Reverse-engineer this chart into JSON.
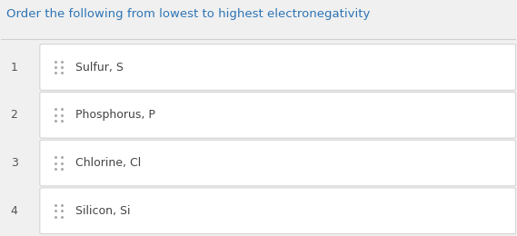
{
  "title": "Order the following from lowest to highest electronegativity",
  "title_color": "#2e75b6",
  "title_fontsize": 9.5,
  "items": [
    {
      "number": "1",
      "label": "Sulfur, S"
    },
    {
      "number": "2",
      "label": "Phosphorus, P"
    },
    {
      "number": "3",
      "label": "Chlorine, Cl"
    },
    {
      "number": "4",
      "label": "Silicon, Si"
    }
  ],
  "bg_color": "#f0f0f0",
  "card_color": "#ffffff",
  "card_border_color": "#d0d0d0",
  "number_color": "#555555",
  "label_color": "#444444",
  "drag_color": "#aaaaaa",
  "figsize": [
    5.69,
    2.6
  ],
  "dpi": 100
}
